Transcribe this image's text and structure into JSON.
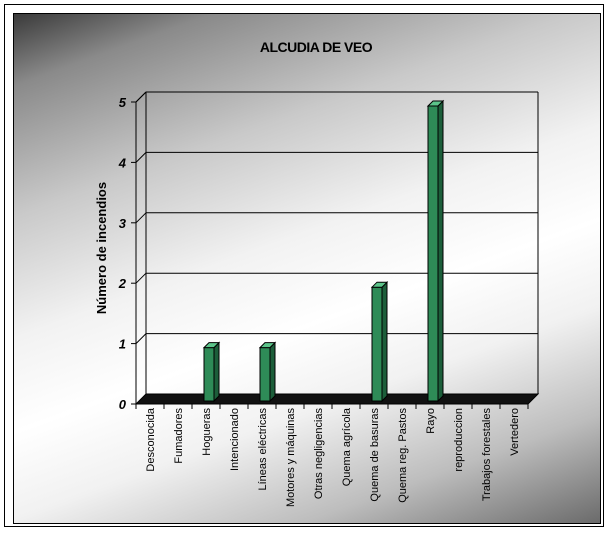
{
  "chart_data": {
    "type": "bar",
    "title": "ALCUDIA DE VEO",
    "xlabel": "",
    "ylabel": "Número de incendios",
    "ylim": [
      0,
      5
    ],
    "yticks": [
      "0",
      "1",
      "2",
      "3",
      "4",
      "5"
    ],
    "grid": true,
    "categories": [
      "Desconocida",
      "Fumadores",
      "Hogueras",
      "Intencionado",
      "Líneas eléctricas",
      "Motores y máquinas",
      "Otras negligencias",
      "Quema agrícola",
      "Quema de basuras",
      "Quema reg. Pastos",
      "Rayo",
      "reproduccion",
      "Trabajos forestales",
      "Vertedero"
    ],
    "values": [
      0,
      0,
      1,
      0,
      1,
      0,
      0,
      0,
      2,
      0,
      5,
      0,
      0,
      0
    ],
    "colors": {
      "bar_front": "#2e8b57",
      "bar_side": "#1c5e3a",
      "bar_top": "#5cc48a",
      "grid": "#000000"
    }
  }
}
